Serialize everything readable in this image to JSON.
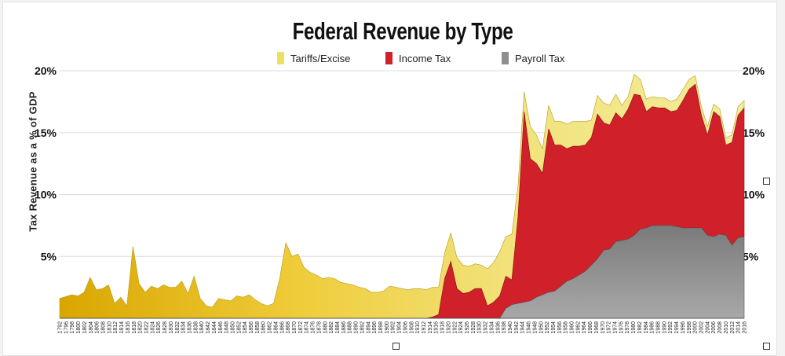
{
  "chart_data": {
    "type": "area",
    "title": "Federal Revenue by Type",
    "ylabel": "Tax Revenue as a % of GDP",
    "xlabel": "",
    "ylim": [
      0,
      20
    ],
    "yticks": [
      "5%",
      "10%",
      "15%",
      "20%"
    ],
    "ytick_values": [
      5,
      10,
      15,
      20
    ],
    "grid": true,
    "legend_position": "top-center",
    "stacking": "stacked",
    "x_ticks": [
      "1792",
      "1796",
      "1798",
      "1800",
      "1802",
      "1804",
      "1806",
      "1808",
      "1810",
      "1812",
      "1814",
      "1816",
      "1818",
      "1820",
      "1822",
      "1824",
      "1826",
      "1828",
      "1830",
      "1832",
      "1834",
      "1836",
      "1838",
      "1840",
      "1842",
      "1844",
      "1846",
      "1848",
      "1850",
      "1852",
      "1854",
      "1856",
      "1858",
      "1860",
      "1862",
      "1864",
      "1866",
      "1868",
      "1870",
      "1872",
      "1874",
      "1876",
      "1878",
      "1880",
      "1882",
      "1884",
      "1886",
      "1888",
      "1890",
      "1892",
      "1894",
      "1896",
      "1898",
      "1900",
      "1902",
      "1904",
      "1906",
      "1908",
      "1910",
      "1912",
      "1914",
      "1916",
      "1918",
      "1920",
      "1922",
      "1924",
      "1926",
      "1928",
      "1930",
      "1932",
      "1934",
      "1936",
      "1938",
      "1940",
      "1942",
      "1944",
      "1946",
      "1948",
      "1950",
      "1952",
      "1954",
      "1956",
      "1958",
      "1960",
      "1962",
      "1964",
      "1966",
      "1968",
      "1970",
      "1972",
      "1974",
      "1976",
      "1978",
      "1980",
      "1982",
      "1984",
      "1986",
      "1988",
      "1990",
      "1992",
      "1994",
      "1996",
      "1998",
      "2000",
      "2002",
      "2004",
      "2006",
      "2008",
      "2010",
      "2012",
      "2014",
      "2016"
    ],
    "series": [
      {
        "name": "Payroll Tax",
        "color": "#8f8f8f",
        "points": [
          [
            1792,
            0
          ],
          [
            1936,
            0
          ],
          [
            1938,
            0.8
          ],
          [
            1940,
            1.1
          ],
          [
            1942,
            1.2
          ],
          [
            1944,
            1.3
          ],
          [
            1946,
            1.4
          ],
          [
            1948,
            1.7
          ],
          [
            1950,
            1.9
          ],
          [
            1952,
            2.1
          ],
          [
            1954,
            2.2
          ],
          [
            1956,
            2.6
          ],
          [
            1958,
            3.0
          ],
          [
            1960,
            3.2
          ],
          [
            1962,
            3.5
          ],
          [
            1964,
            3.8
          ],
          [
            1966,
            4.3
          ],
          [
            1968,
            4.8
          ],
          [
            1970,
            5.5
          ],
          [
            1972,
            5.6
          ],
          [
            1974,
            6.2
          ],
          [
            1976,
            6.3
          ],
          [
            1978,
            6.4
          ],
          [
            1980,
            6.7
          ],
          [
            1982,
            7.2
          ],
          [
            1984,
            7.3
          ],
          [
            1986,
            7.5
          ],
          [
            1988,
            7.5
          ],
          [
            1990,
            7.5
          ],
          [
            1992,
            7.5
          ],
          [
            1994,
            7.4
          ],
          [
            1996,
            7.3
          ],
          [
            1998,
            7.3
          ],
          [
            2000,
            7.3
          ],
          [
            2002,
            7.3
          ],
          [
            2004,
            6.7
          ],
          [
            2006,
            6.6
          ],
          [
            2008,
            6.8
          ],
          [
            2010,
            6.7
          ],
          [
            2012,
            5.9
          ],
          [
            2014,
            6.5
          ],
          [
            2016,
            6.6
          ]
        ]
      },
      {
        "name": "Income Tax",
        "color": "#d0202a",
        "points": [
          [
            1792,
            0
          ],
          [
            1912,
            0
          ],
          [
            1914,
            0.1
          ],
          [
            1916,
            0.3
          ],
          [
            1918,
            3.2
          ],
          [
            1920,
            4.6
          ],
          [
            1922,
            2.4
          ],
          [
            1924,
            2.0
          ],
          [
            1926,
            2.1
          ],
          [
            1928,
            2.4
          ],
          [
            1930,
            2.4
          ],
          [
            1932,
            1.0
          ],
          [
            1934,
            1.3
          ],
          [
            1936,
            1.8
          ],
          [
            1938,
            2.6
          ],
          [
            1940,
            2.0
          ],
          [
            1942,
            7.0
          ],
          [
            1944,
            15.4
          ],
          [
            1946,
            11.5
          ],
          [
            1948,
            10.8
          ],
          [
            1950,
            9.8
          ],
          [
            1952,
            13.2
          ],
          [
            1954,
            11.8
          ],
          [
            1956,
            11.4
          ],
          [
            1958,
            10.7
          ],
          [
            1960,
            10.7
          ],
          [
            1962,
            10.4
          ],
          [
            1964,
            10.2
          ],
          [
            1966,
            10.3
          ],
          [
            1968,
            11.7
          ],
          [
            1970,
            10.3
          ],
          [
            1972,
            10.0
          ],
          [
            1974,
            10.4
          ],
          [
            1976,
            9.8
          ],
          [
            1978,
            10.5
          ],
          [
            1980,
            11.4
          ],
          [
            1982,
            10.8
          ],
          [
            1984,
            9.4
          ],
          [
            1986,
            9.6
          ],
          [
            1988,
            9.5
          ],
          [
            1990,
            9.5
          ],
          [
            1992,
            9.2
          ],
          [
            1994,
            9.4
          ],
          [
            1996,
            10.3
          ],
          [
            1998,
            11.2
          ],
          [
            2000,
            11.6
          ],
          [
            2002,
            9.1
          ],
          [
            2004,
            8.1
          ],
          [
            2006,
            10.1
          ],
          [
            2008,
            9.5
          ],
          [
            2010,
            7.3
          ],
          [
            2012,
            8.3
          ],
          [
            2014,
            9.9
          ],
          [
            2016,
            10.4
          ]
        ]
      },
      {
        "name": "Tariffs/Excise",
        "color": "#efde62",
        "points": [
          [
            1792,
            1.6
          ],
          [
            1796,
            1.9
          ],
          [
            1798,
            1.8
          ],
          [
            1800,
            2.1
          ],
          [
            1802,
            3.3
          ],
          [
            1804,
            2.3
          ],
          [
            1806,
            2.4
          ],
          [
            1808,
            2.7
          ],
          [
            1810,
            1.2
          ],
          [
            1812,
            1.7
          ],
          [
            1814,
            1.0
          ],
          [
            1816,
            5.8
          ],
          [
            1818,
            2.8
          ],
          [
            1820,
            2.1
          ],
          [
            1822,
            2.6
          ],
          [
            1824,
            2.4
          ],
          [
            1826,
            2.7
          ],
          [
            1828,
            2.5
          ],
          [
            1830,
            2.5
          ],
          [
            1832,
            3.0
          ],
          [
            1834,
            2.0
          ],
          [
            1836,
            3.4
          ],
          [
            1838,
            1.6
          ],
          [
            1840,
            1.0
          ],
          [
            1842,
            0.9
          ],
          [
            1844,
            1.6
          ],
          [
            1846,
            1.5
          ],
          [
            1848,
            1.4
          ],
          [
            1850,
            1.8
          ],
          [
            1852,
            1.7
          ],
          [
            1854,
            1.9
          ],
          [
            1856,
            1.5
          ],
          [
            1858,
            1.2
          ],
          [
            1860,
            1.0
          ],
          [
            1862,
            1.2
          ],
          [
            1864,
            3.2
          ],
          [
            1866,
            6.1
          ],
          [
            1868,
            5.0
          ],
          [
            1870,
            5.2
          ],
          [
            1872,
            4.1
          ],
          [
            1874,
            3.7
          ],
          [
            1876,
            3.5
          ],
          [
            1878,
            3.2
          ],
          [
            1880,
            3.3
          ],
          [
            1882,
            3.2
          ],
          [
            1884,
            2.9
          ],
          [
            1886,
            2.8
          ],
          [
            1888,
            2.7
          ],
          [
            1890,
            2.5
          ],
          [
            1892,
            2.4
          ],
          [
            1894,
            2.1
          ],
          [
            1896,
            2.1
          ],
          [
            1898,
            2.2
          ],
          [
            1900,
            2.6
          ],
          [
            1902,
            2.5
          ],
          [
            1904,
            2.4
          ],
          [
            1906,
            2.3
          ],
          [
            1908,
            2.4
          ],
          [
            1910,
            2.4
          ],
          [
            1912,
            2.3
          ],
          [
            1914,
            2.4
          ],
          [
            1916,
            2.2
          ],
          [
            1918,
            2.1
          ],
          [
            1920,
            2.3
          ],
          [
            1922,
            2.5
          ],
          [
            1924,
            2.3
          ],
          [
            1926,
            2.1
          ],
          [
            1928,
            2.0
          ],
          [
            1930,
            1.9
          ],
          [
            1932,
            3.0
          ],
          [
            1934,
            3.2
          ],
          [
            1936,
            3.6
          ],
          [
            1938,
            3.2
          ],
          [
            1940,
            3.7
          ],
          [
            1942,
            2.5
          ],
          [
            1944,
            1.6
          ],
          [
            1946,
            2.6
          ],
          [
            1948,
            2.3
          ],
          [
            1950,
            2.0
          ],
          [
            1952,
            1.9
          ],
          [
            1954,
            1.9
          ],
          [
            1956,
            1.9
          ],
          [
            1958,
            2.0
          ],
          [
            1960,
            2.0
          ],
          [
            1962,
            2.0
          ],
          [
            1964,
            1.9
          ],
          [
            1966,
            1.4
          ],
          [
            1968,
            1.5
          ],
          [
            1970,
            1.6
          ],
          [
            1972,
            1.6
          ],
          [
            1974,
            1.5
          ],
          [
            1976,
            1.1
          ],
          [
            1978,
            1.0
          ],
          [
            1980,
            1.6
          ],
          [
            1982,
            1.3
          ],
          [
            1984,
            1.0
          ],
          [
            1986,
            0.8
          ],
          [
            1988,
            0.8
          ],
          [
            1990,
            0.8
          ],
          [
            1992,
            0.8
          ],
          [
            1994,
            0.9
          ],
          [
            1996,
            0.9
          ],
          [
            1998,
            0.8
          ],
          [
            2000,
            0.7
          ],
          [
            2002,
            0.7
          ],
          [
            2004,
            0.7
          ],
          [
            2006,
            0.6
          ],
          [
            2008,
            0.6
          ],
          [
            2010,
            0.6
          ],
          [
            2012,
            0.6
          ],
          [
            2014,
            0.7
          ],
          [
            2016,
            0.6
          ]
        ]
      }
    ],
    "legend": [
      {
        "name": "Tariffs/Excise",
        "color": "#efde62"
      },
      {
        "name": "Income Tax",
        "color": "#d0202a"
      },
      {
        "name": "Payroll Tax",
        "color": "#8f8f8f"
      }
    ]
  }
}
